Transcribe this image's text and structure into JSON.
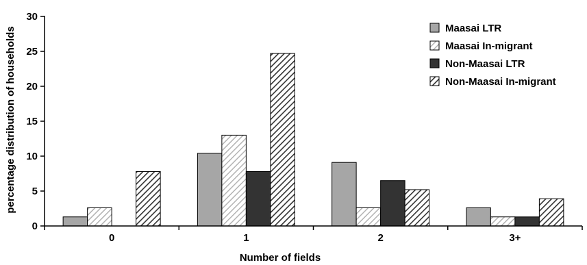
{
  "chart_data": {
    "type": "bar",
    "xlabel": "Number of fields",
    "ylabel": "percentage distribution of households",
    "ylim": [
      0,
      30
    ],
    "yticks": [
      0,
      5,
      10,
      15,
      20,
      25,
      30
    ],
    "categories": [
      "0",
      "1",
      "2",
      "3+"
    ],
    "grid": false,
    "legend_position": "top-right",
    "series": [
      {
        "name": "Maasai LTR",
        "values": [
          1.3,
          10.4,
          9.1,
          2.6
        ],
        "pattern": "solid",
        "color": "#a6a6a6"
      },
      {
        "name": "Maasai In-migrant",
        "values": [
          2.6,
          13.0,
          2.6,
          1.3
        ],
        "pattern": "light-hatch",
        "color": "#b3b3b3"
      },
      {
        "name": "Non-Maasai LTR",
        "values": [
          0,
          7.8,
          6.5,
          1.3
        ],
        "pattern": "solid",
        "color": "#333333"
      },
      {
        "name": "Non-Maasai In-migrant",
        "values": [
          7.8,
          24.7,
          5.2,
          3.9
        ],
        "pattern": "dark-hatch",
        "color": "#333333"
      }
    ]
  }
}
